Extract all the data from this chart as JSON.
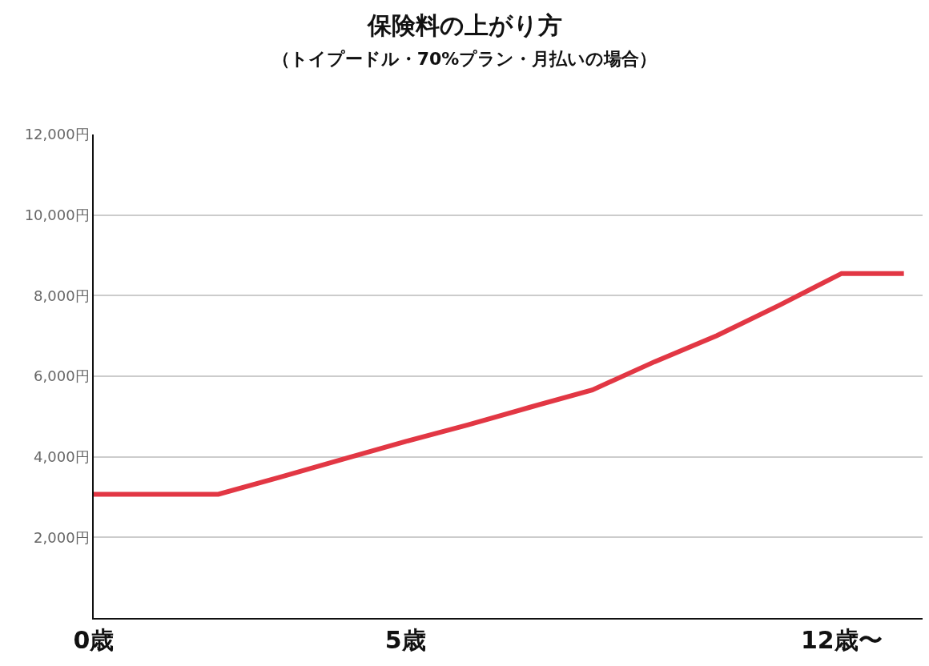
{
  "chart_data": {
    "type": "line",
    "title": "保険料の上がり方",
    "subtitle": "（トイプードル・70%プラン・月払いの場合）",
    "categories": [
      "0歳",
      null,
      null,
      null,
      null,
      "5歳",
      null,
      null,
      null,
      null,
      null,
      null,
      "12歳〜",
      null
    ],
    "series": [
      {
        "color": "#e23744",
        "values": [
          3070,
          3070,
          3070,
          3500,
          3940,
          4380,
          4790,
          5230,
          5660,
          6360,
          7010,
          7760,
          8550,
          8550
        ]
      }
    ],
    "ylim": [
      0,
      12000
    ],
    "yticks": [
      {
        "value": 2000,
        "label": "2,000円"
      },
      {
        "value": 4000,
        "label": "4,000円"
      },
      {
        "value": 6000,
        "label": "6,000円"
      },
      {
        "value": 8000,
        "label": "8,000円"
      },
      {
        "value": 10000,
        "label": "10,000円"
      },
      {
        "value": 12000,
        "label": "12,000円"
      }
    ],
    "grid": "y",
    "marker": "none",
    "line_style": "solid"
  }
}
